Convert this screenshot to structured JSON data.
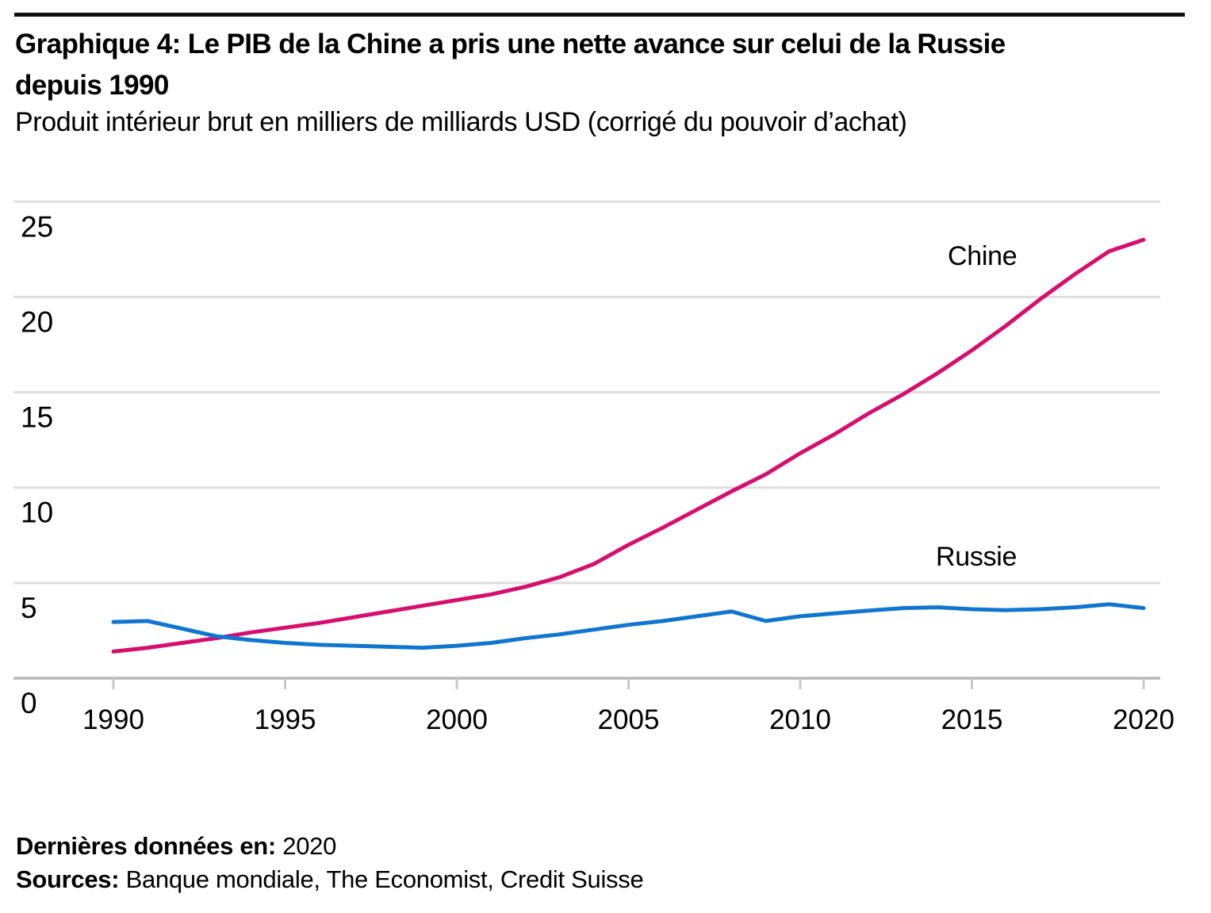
{
  "page": {
    "title_line1": "Graphique 4: Le PIB de la Chine a pris une nette avance sur celui de la Russie",
    "title_line2": "depuis 1990",
    "subtitle": "Produit intérieur brut en milliers de milliards USD (corrigé du pouvoir d’achat)"
  },
  "footer": {
    "last_data_label": "Dernières données en:",
    "last_data_value": "2020",
    "sources_label": "Sources:",
    "sources_value": "Banque mondiale, The Economist, Credit Suisse"
  },
  "chart_data": {
    "type": "line",
    "x": [
      1990,
      1991,
      1992,
      1993,
      1994,
      1995,
      1996,
      1997,
      1998,
      1999,
      2000,
      2001,
      2002,
      2003,
      2004,
      2005,
      2006,
      2007,
      2008,
      2009,
      2010,
      2011,
      2012,
      2013,
      2014,
      2015,
      2016,
      2017,
      2018,
      2019,
      2020
    ],
    "series": [
      {
        "name": "Chine",
        "color": "#d60f6e",
        "values": [
          1.4,
          1.6,
          1.85,
          2.1,
          2.4,
          2.65,
          2.9,
          3.2,
          3.5,
          3.8,
          4.1,
          4.4,
          4.8,
          5.3,
          6.0,
          7.0,
          7.9,
          8.85,
          9.8,
          10.7,
          11.8,
          12.8,
          13.9,
          14.9,
          16.0,
          17.2,
          18.5,
          19.9,
          21.2,
          22.4,
          23.0
        ]
      },
      {
        "name": "Russie",
        "color": "#0f76d0",
        "values": [
          2.95,
          3.0,
          2.6,
          2.2,
          2.0,
          1.85,
          1.75,
          1.7,
          1.65,
          1.6,
          1.7,
          1.85,
          2.1,
          2.3,
          2.55,
          2.8,
          3.0,
          3.25,
          3.5,
          3.0,
          3.25,
          3.4,
          3.55,
          3.68,
          3.72,
          3.62,
          3.57,
          3.62,
          3.72,
          3.88,
          3.68
        ]
      }
    ],
    "xticks": [
      1990,
      1995,
      2000,
      2005,
      2010,
      2015,
      2020
    ],
    "yticks": [
      0,
      5,
      10,
      15,
      20,
      25
    ],
    "ylim": [
      0,
      25
    ],
    "xlim": [
      1987,
      2020.5
    ],
    "grid": "horizontal-only",
    "legend": "inline-labels-on-plot",
    "axis_colors": {
      "gridline": "#dedede",
      "axis_line": "#b7b7b7",
      "tick": "#c9c9c9"
    }
  }
}
